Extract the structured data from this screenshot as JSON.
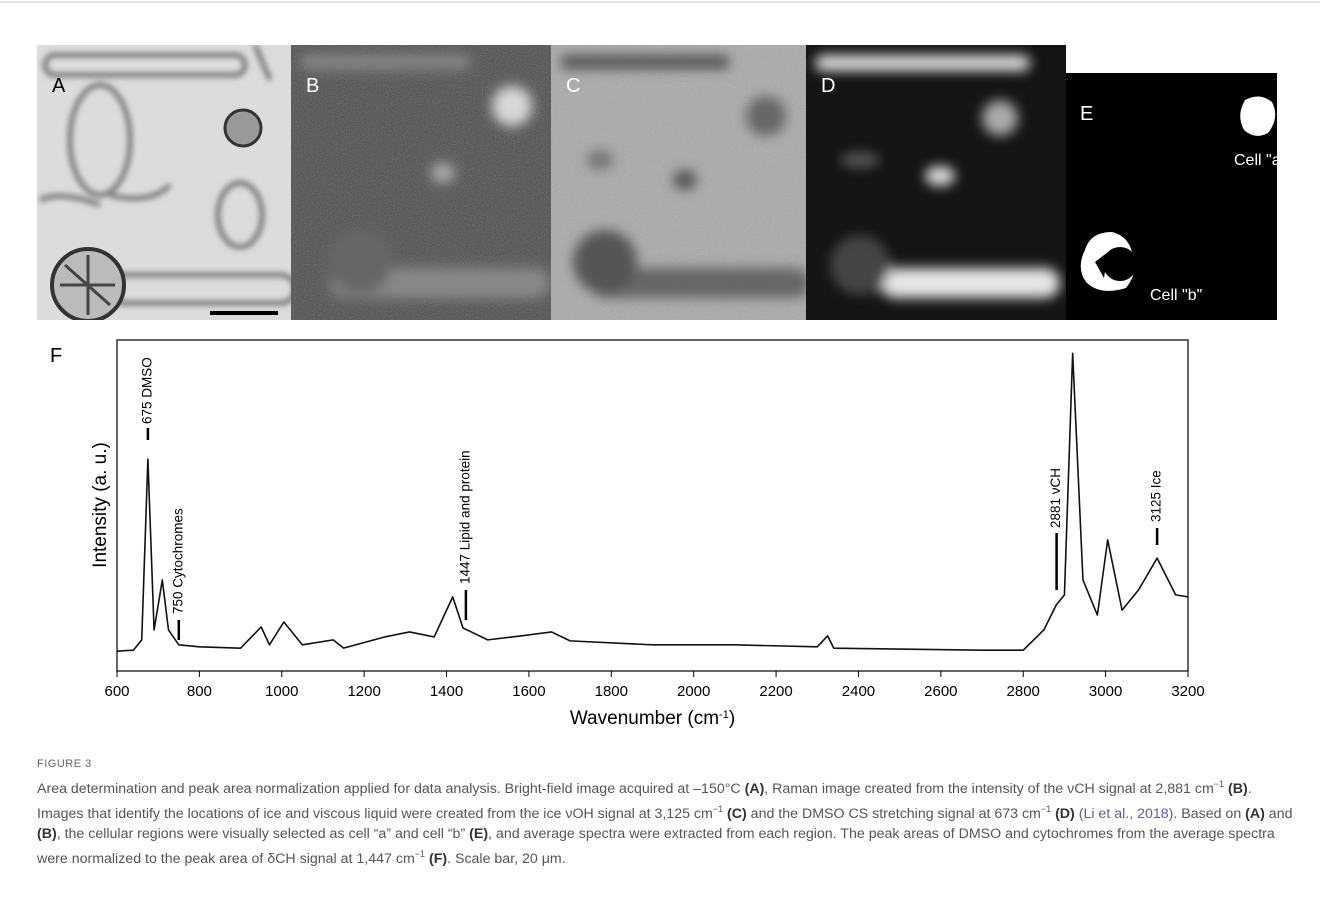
{
  "figure": {
    "panels": [
      "A",
      "B",
      "C",
      "D",
      "E"
    ],
    "cell_labels": [
      "Cell \"a\"",
      "Cell \"b\""
    ]
  },
  "chart_data": {
    "type": "line",
    "panel_label": "F",
    "xlabel": [
      "Wavenumber (cm",
      "-1",
      ")"
    ],
    "ylabel": "Intensity (a. u.)",
    "x": [
      600,
      640,
      660,
      675,
      690,
      710,
      725,
      750,
      800,
      900,
      950,
      970,
      1005,
      1050,
      1125,
      1150,
      1250,
      1310,
      1370,
      1415,
      1440,
      1460,
      1500,
      1580,
      1655,
      1700,
      1900,
      2100,
      2300,
      2325,
      2340,
      2700,
      2800,
      2850,
      2880,
      2900,
      2920,
      2945,
      2980,
      3005,
      3040,
      3080,
      3125,
      3170,
      3200
    ],
    "values": [
      6,
      6.3,
      9.4,
      64,
      12.4,
      27.5,
      12.4,
      7.9,
      7.3,
      6.9,
      13.3,
      7.9,
      14.8,
      7.9,
      9.4,
      6.9,
      10.3,
      11.8,
      10.3,
      22.4,
      13,
      11.8,
      9.4,
      10.6,
      11.8,
      9.1,
      7.9,
      7.9,
      7.3,
      10.6,
      6.9,
      6.3,
      6.3,
      12.4,
      19.9,
      23,
      96,
      27.5,
      16.9,
      39.6,
      18.4,
      24.5,
      34.1,
      23,
      22.4
    ],
    "color": "#111111",
    "xlim": [
      600,
      3200
    ],
    "ylim": [
      0,
      100
    ],
    "xticks": [
      600,
      800,
      1000,
      1200,
      1400,
      1600,
      1800,
      2000,
      2200,
      2400,
      2600,
      2800,
      3000,
      3200
    ],
    "annotations": [
      {
        "x": 675,
        "label": "675 DMSO"
      },
      {
        "x": 750,
        "label": "750 Cytochromes"
      },
      {
        "x": 1447,
        "label": "1447 Lipid and protein"
      },
      {
        "x": 2881,
        "label": "2881 νCH"
      },
      {
        "x": 3125,
        "label": "3125 Ice"
      }
    ]
  },
  "caption": {
    "label": "FIGURE 3",
    "runs": [
      {
        "text": "Area determination and peak area normalization applied for data analysis. Bright-field image acquired at –150°C ",
        "style": "plain"
      },
      {
        "text": "(A)",
        "style": "bold"
      },
      {
        "text": ", Raman image created from the intensity of the νCH signal at 2,881 cm",
        "style": "plain"
      },
      {
        "text": "−1",
        "style": "sup"
      },
      {
        "text": " (B)",
        "style": "bold"
      },
      {
        "text": ". Images that identify the locations of ice and viscous liquid were created from the ice νOH signal at 3,125 cm",
        "style": "plain"
      },
      {
        "text": "−1",
        "style": "sup"
      },
      {
        "text": " (C)",
        "style": "bold"
      },
      {
        "text": " and the DMSO CS stretching signal at 673 cm",
        "style": "plain"
      },
      {
        "text": "−1",
        "style": "sup"
      },
      {
        "text": " (D)",
        "style": "bold"
      },
      {
        "text": " (Li et al., 2018)",
        "style": "link"
      },
      {
        "text": ". Based on ",
        "style": "plain"
      },
      {
        "text": "(A)",
        "style": "bold"
      },
      {
        "text": " and ",
        "style": "plain"
      },
      {
        "text": "(B)",
        "style": "bold"
      },
      {
        "text": ", the cellular regions were visually selected as cell “a” and cell “b” ",
        "style": "plain"
      },
      {
        "text": "(E)",
        "style": "bold"
      },
      {
        "text": ", and average spectra were extracted from each region. The peak areas of DMSO and cytochromes from the average spectra were normalized to the peak area of δCH signal at 1,447 cm",
        "style": "plain"
      },
      {
        "text": "−1",
        "style": "sup"
      },
      {
        "text": " (F)",
        "style": "bold"
      },
      {
        "text": ". Scale bar, 20 μm.",
        "style": "plain"
      }
    ]
  }
}
